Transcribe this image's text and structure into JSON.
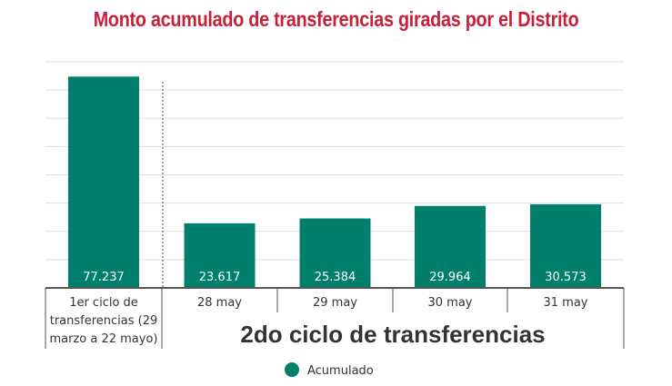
{
  "title": "Monto acumulado de transferencias giradas por el Distrito",
  "colors": {
    "bar": "#00806c",
    "title": "#c8203a",
    "grid": "#dddddd",
    "axis": "#555555"
  },
  "chart_data": {
    "type": "bar",
    "categories": [
      "1er ciclo de transferencias (29 marzo a 22 mayo)",
      "28 may",
      "29 may",
      "30 may",
      "31 may"
    ],
    "category_label_lines": [
      [
        "1er ciclo de",
        "transferencias (29",
        "marzo a 22 mayo)"
      ],
      [
        "28 may"
      ],
      [
        "29 may"
      ],
      [
        "30 may"
      ],
      [
        "31 may"
      ]
    ],
    "values": [
      77237,
      23617,
      25384,
      29964,
      30573
    ],
    "value_labels": [
      "77.237",
      "23.617",
      "25.384",
      "29.964",
      "30.573"
    ],
    "series": [
      {
        "name": "Acumulado",
        "values": [
          77237,
          23617,
          25384,
          29964,
          30573
        ]
      }
    ],
    "group_label": "2do ciclo de transferencias",
    "ylim": [
      0,
      80000
    ],
    "grid": true,
    "legend": "bottom-center"
  }
}
